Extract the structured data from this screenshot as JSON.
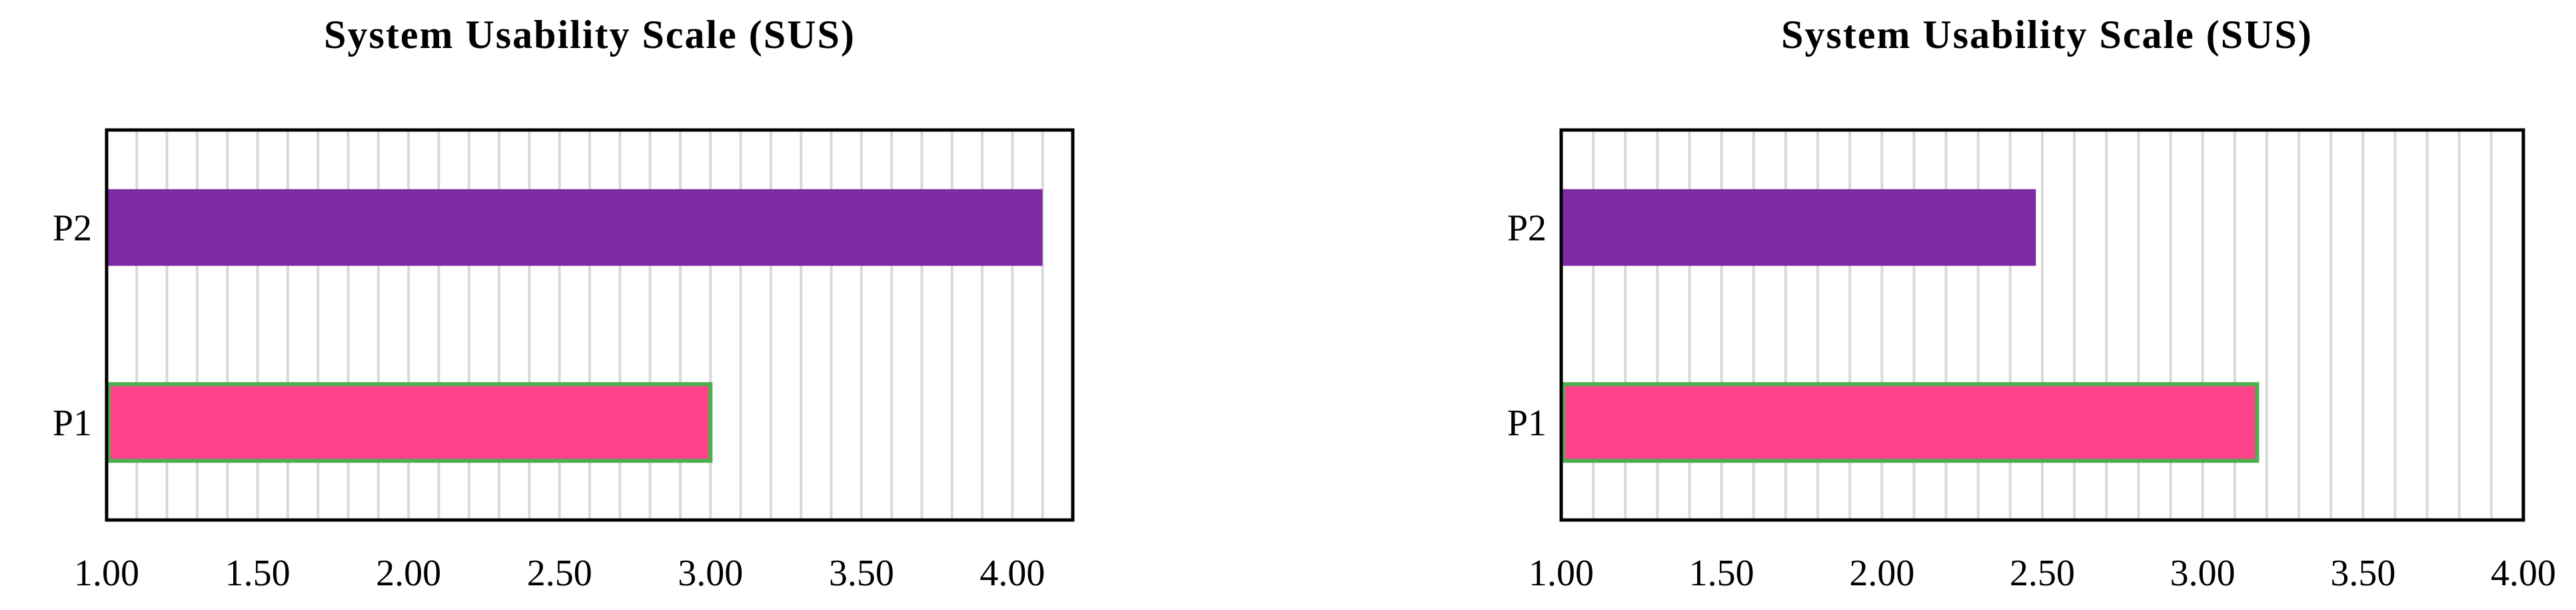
{
  "chart_data": [
    {
      "type": "bar",
      "orientation": "horizontal",
      "title": "System Usability Scale (SUS)",
      "categories": [
        "P1",
        "P2"
      ],
      "values": [
        3.0,
        4.1
      ],
      "bar_colors": [
        "#FF4289",
        "#7F2AA5"
      ],
      "bar_outline": [
        "#4CAF50",
        "none"
      ],
      "xlim": [
        1.0,
        4.2
      ],
      "xticks": [
        "1.00",
        "1.50",
        "2.00",
        "2.50",
        "3.00",
        "3.50",
        "4.00"
      ],
      "xtick_values": [
        1.0,
        1.5,
        2.0,
        2.5,
        3.0,
        3.5,
        4.0
      ],
      "grid": "vertical",
      "grid_step": 0.1
    },
    {
      "type": "bar",
      "orientation": "horizontal",
      "title": "System Usability Scale (SUS)",
      "categories": [
        "P1",
        "P2"
      ],
      "values": [
        3.17,
        2.48
      ],
      "bar_colors": [
        "#FF4289",
        "#7F2AA5"
      ],
      "bar_outline": [
        "#4CAF50",
        "none"
      ],
      "xlim": [
        1.0,
        4.0
      ],
      "xticks": [
        "1.00",
        "1.50",
        "2.00",
        "2.50",
        "3.00",
        "3.50",
        "4.00"
      ],
      "xtick_values": [
        1.0,
        1.5,
        2.0,
        2.5,
        3.0,
        3.5,
        4.0
      ],
      "grid": "vertical",
      "grid_step": 0.1
    }
  ]
}
